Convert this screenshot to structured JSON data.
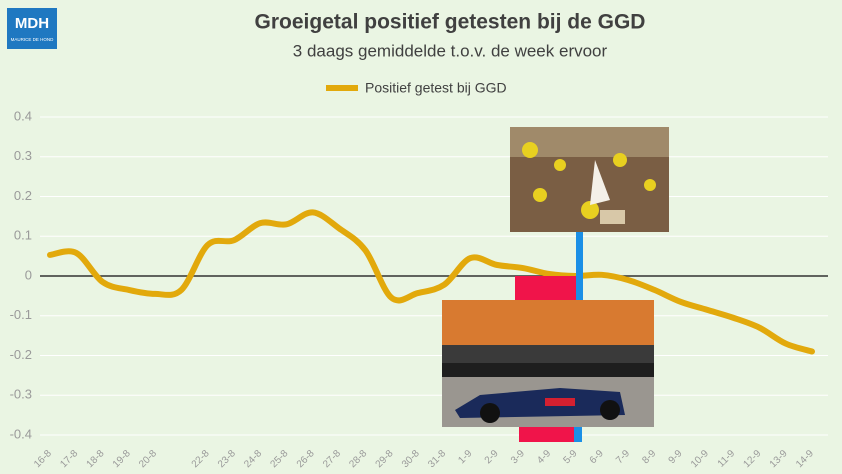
{
  "logo": {
    "title": "MDH",
    "subtitle": "MAURICE DE HOND"
  },
  "chart_data": {
    "type": "line",
    "title": "Groeigetal positief getesten bij de GGD",
    "subtitle": "3 daags gemiddelde t.o.v. de week ervoor",
    "categories": [
      "16-8",
      "17-8",
      "18-8",
      "19-8",
      "20-8",
      null,
      "22-8",
      "23-8",
      "24-8",
      "25-8",
      "26-8",
      "27-8",
      "28-8",
      "29-8",
      "30-8",
      "31-8",
      "1-9",
      "2-9",
      "3-9",
      "4-9",
      "5-9",
      "6-9",
      "7-9",
      "8-9",
      "9-9",
      "10-9",
      "11-9",
      "12-9",
      "13-9",
      "14-9"
    ],
    "series": [
      {
        "name": "Positief getest bij GGD",
        "color": "#e2a90c",
        "values": [
          0.053,
          0.058,
          -0.015,
          -0.035,
          -0.045,
          -0.035,
          0.078,
          0.09,
          0.133,
          0.13,
          0.16,
          0.12,
          0.065,
          -0.055,
          -0.043,
          -0.022,
          0.045,
          0.028,
          0.02,
          0.005,
          0.0,
          0.003,
          -0.01,
          -0.035,
          -0.065,
          -0.085,
          -0.105,
          -0.13,
          -0.17,
          -0.19
        ]
      }
    ],
    "ylim": [
      -0.4,
      0.4
    ],
    "yticks": [
      -0.4,
      -0.3,
      -0.2,
      -0.1,
      0,
      0.1,
      0.2,
      0.3,
      0.4
    ],
    "grid": true,
    "legend": "top"
  }
}
